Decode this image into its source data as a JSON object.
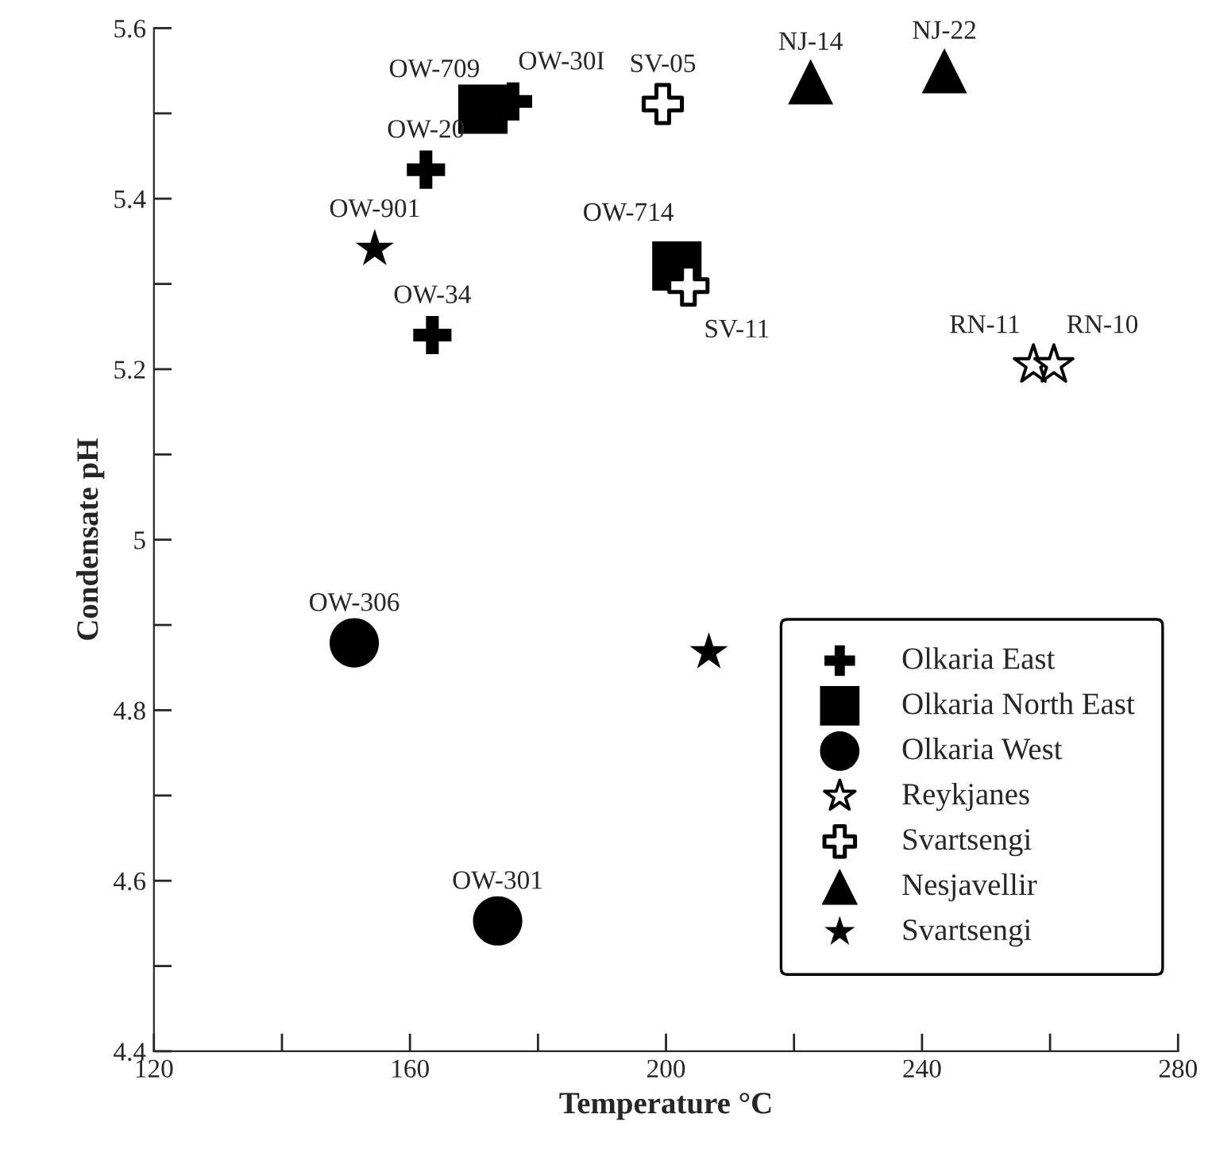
{
  "chart_data": {
    "type": "scatter",
    "xlabel": "Temperature °C",
    "ylabel": "Condensate pH",
    "xlim": [
      120,
      280
    ],
    "ylim": [
      4.4,
      5.6
    ],
    "xticks": [
      120,
      {
        "value": 140,
        "label": null
      },
      160,
      {
        "value": 180,
        "label": null
      },
      200,
      {
        "value": 220,
        "label": null
      },
      240,
      {
        "value": 260,
        "label": null
      },
      280
    ],
    "yticks": [
      4.4,
      {
        "value": 4.5,
        "label": null
      },
      4.6,
      {
        "value": 4.7,
        "label": null
      },
      4.8,
      {
        "value": 4.9,
        "label": null
      },
      5,
      {
        "value": 5.1,
        "label": null
      },
      5.2,
      {
        "value": 5.3,
        "label": null
      },
      5.4,
      {
        "value": 5.5,
        "label": null
      },
      5.6
    ],
    "legend": "bottom right",
    "grid": false,
    "series": [
      {
        "name": "Olkaria East",
        "marker": "cross",
        "color": "#000000",
        "x": [
          176.1,
          162.5,
          163.5
        ],
        "values": [
          5.514,
          5.434,
          5.24
        ]
      },
      {
        "name": "Olkaria North East",
        "marker": "square",
        "color": "#000000",
        "x": [
          171.4,
          201.7
        ],
        "values": [
          5.505,
          5.321
        ]
      },
      {
        "name": "Olkaria West",
        "marker": "circle",
        "color": "#000000",
        "x": [
          151.3,
          173.7
        ],
        "values": [
          4.879,
          4.553
        ]
      },
      {
        "name": "Reykjanes",
        "marker": "star",
        "color": "#ffffff",
        "x": [
          257.4,
          260.6
        ],
        "values": [
          5.205,
          5.205
        ]
      },
      {
        "name": "Svartsengi",
        "marker": "cross",
        "color": "#ffffff",
        "x": [
          199.5,
          203.5
        ],
        "values": [
          5.511,
          5.298
        ]
      },
      {
        "name": "Nesjavellir",
        "marker": "triangle",
        "color": "#000000",
        "x": [
          222.6,
          243.5
        ],
        "values": [
          5.537,
          5.55
        ]
      },
      {
        "name": "Svartsengi",
        "marker": "star",
        "color": "#000000",
        "x": [
          154.5,
          206.7
        ],
        "values": [
          5.341,
          4.868
        ]
      }
    ],
    "annotations": [
      {
        "text": "OW-30I",
        "x": 176.1,
        "y": 5.514
      },
      {
        "text": "OW-709",
        "x": 171.4,
        "y": 5.505
      },
      {
        "text": "OW-20",
        "x": 162.5,
        "y": 5.434
      },
      {
        "text": "OW-34",
        "x": 163.5,
        "y": 5.24
      },
      {
        "text": "OW-901",
        "x": 154.5,
        "y": 5.341
      },
      {
        "text": "OW-714",
        "x": 201.7,
        "y": 5.321
      },
      {
        "text": "SV-11",
        "x": 203.5,
        "y": 5.298
      },
      {
        "text": "SV-05",
        "x": 199.5,
        "y": 5.511
      },
      {
        "text": "NJ-14",
        "x": 222.6,
        "y": 5.537
      },
      {
        "text": "NJ-22",
        "x": 243.5,
        "y": 5.55
      },
      {
        "text": "RN-11",
        "x": 257.4,
        "y": 5.205
      },
      {
        "text": "RN-10",
        "x": 260.6,
        "y": 5.205
      },
      {
        "text": "OW-306",
        "x": 151.3,
        "y": 4.879
      },
      {
        "text": "OW-301",
        "x": 173.7,
        "y": 4.553
      }
    ]
  }
}
